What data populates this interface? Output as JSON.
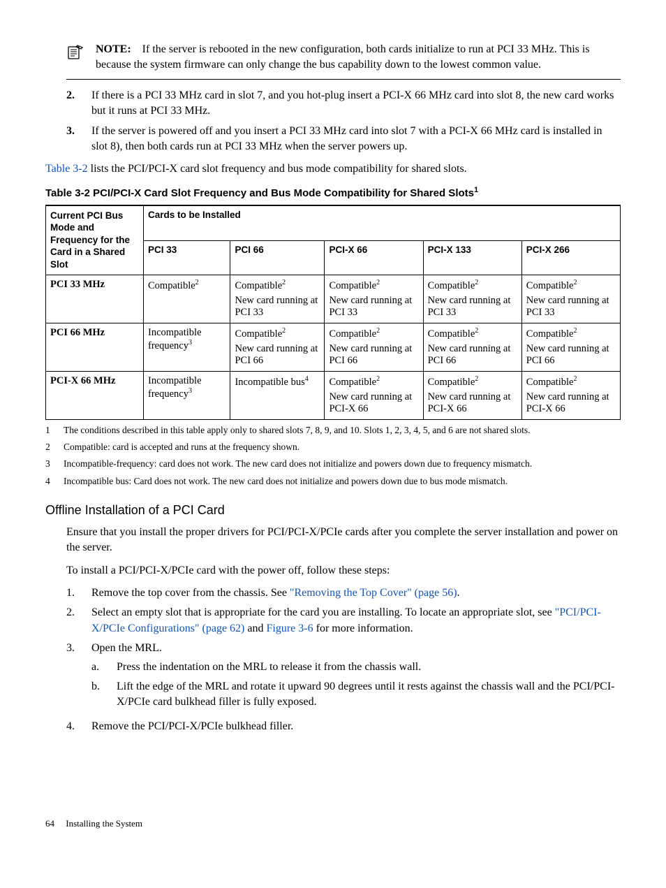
{
  "note": {
    "label": "NOTE:",
    "text": "If the server is rebooted in the new configuration, both cards initialize to run at PCI 33 MHz. This is because the system firmware can only change the bus capability down to the lowest common value."
  },
  "prelist": [
    {
      "num": "2.",
      "text": "If there is a PCI 33 MHz card in slot 7, and you hot-plug insert a PCI-X 66 MHz card into slot 8, the new card works but it runs at PCI 33 MHz."
    },
    {
      "num": "3.",
      "text": "If the server is powered off and you insert a PCI 33 MHz card into slot 7 with a PCI-X 66 MHz card is installed in slot 8), then both cards run at PCI 33 MHz when the server powers up."
    }
  ],
  "table_ref_para": {
    "link": "Table 3-2",
    "rest": " lists the PCI/PCI-X card slot frequency and bus mode compatibility for shared slots."
  },
  "table_title": "Table  3-2  PCI/PCI-X Card Slot Frequency and Bus Mode Compatibility for Shared Slots",
  "table_title_sup": "1",
  "table": {
    "rowhead": "Current PCI Bus Mode and Frequency for the Card in a Shared Slot",
    "spanner": "Cards to be Installed",
    "cols": [
      "PCI 33",
      "PCI 66",
      "PCI-X 66",
      "PCI-X 133",
      "PCI-X 266"
    ],
    "rows": [
      {
        "label": "PCI 33 MHz",
        "cells": [
          {
            "main": "Compatible",
            "sup": "2",
            "note": ""
          },
          {
            "main": "Compatible",
            "sup": "2",
            "note": "New card running at PCI 33"
          },
          {
            "main": "Compatible",
            "sup": "2",
            "note": "New card running at PCI 33"
          },
          {
            "main": "Compatible",
            "sup": "2",
            "note": "New card running at PCI 33"
          },
          {
            "main": "Compatible",
            "sup": "2",
            "note": "New card running at PCI 33"
          }
        ]
      },
      {
        "label": "PCI 66 MHz",
        "cells": [
          {
            "main": "Incompatible frequency",
            "sup": "3",
            "note": ""
          },
          {
            "main": "Compatible",
            "sup": "2",
            "note": "New card running at PCI 66"
          },
          {
            "main": "Compatible",
            "sup": "2",
            "note": "New card running at PCI 66"
          },
          {
            "main": "Compatible",
            "sup": "2",
            "note": "New card running at PCI 66"
          },
          {
            "main": "Compatible",
            "sup": "2",
            "note": "New card running at PCI 66"
          }
        ]
      },
      {
        "label": "PCI-X 66 MHz",
        "cells": [
          {
            "main": "Incompatible frequency",
            "sup": "3",
            "note": ""
          },
          {
            "main": "Incompatible bus",
            "sup": "4",
            "note": ""
          },
          {
            "main": "Compatible",
            "sup": "2",
            "note": "New card running at PCI-X 66"
          },
          {
            "main": "Compatible",
            "sup": "2",
            "note": "New card running at PCI-X 66"
          },
          {
            "main": "Compatible",
            "sup": "2",
            "note": "New card running at PCI-X 66"
          }
        ]
      }
    ]
  },
  "footnotes": [
    {
      "n": "1",
      "t": "The conditions described in this table apply only to shared slots 7, 8, 9, and 10. Slots 1, 2, 3, 4, 5, and 6 are not shared slots."
    },
    {
      "n": "2",
      "t": "Compatible: card is accepted and runs at the frequency shown."
    },
    {
      "n": "3",
      "t": "Incompatible-frequency: card does not work. The new card does not initialize and powers down due to frequency mismatch."
    },
    {
      "n": "4",
      "t": "Incompatible bus: Card does not work. The new card does not initialize and powers down due to bus mode mismatch."
    }
  ],
  "section_heading": "Offline Installation of a PCI Card",
  "section_intro1": "Ensure that you install the proper drivers for PCI/PCI-X/PCIe cards after you complete the server installation and power on the server.",
  "section_intro2": "To install a PCI/PCI-X/PCIe card with the power off, follow these steps:",
  "steps": [
    {
      "n": "1.",
      "pre": "Remove the top cover from the chassis. See ",
      "link": "\"Removing the Top Cover\" (page 56)",
      "post": "."
    },
    {
      "n": "2.",
      "pre": "Select an empty slot that is appropriate for the card you are installing. To locate an appropriate slot, see ",
      "link": "\"PCI/PCI-X/PCIe Configurations\" (page 62)",
      "mid": " and ",
      "link2": "Figure 3-6",
      "post": " for more information."
    },
    {
      "n": "3.",
      "pre": "Open the MRL.",
      "sub": [
        {
          "s": "a.",
          "t": "Press the indentation on the MRL to release it from the chassis wall."
        },
        {
          "s": "b.",
          "t": "Lift the edge of the MRL and rotate it upward 90 degrees until it rests against the chassis wall and the PCI/PCI-X/PCIe card bulkhead filler is fully exposed."
        }
      ]
    },
    {
      "n": "4.",
      "pre": "Remove the PCI/PCI-X/PCIe bulkhead filler."
    }
  ],
  "footer": {
    "page": "64",
    "title": "Installing the System"
  }
}
